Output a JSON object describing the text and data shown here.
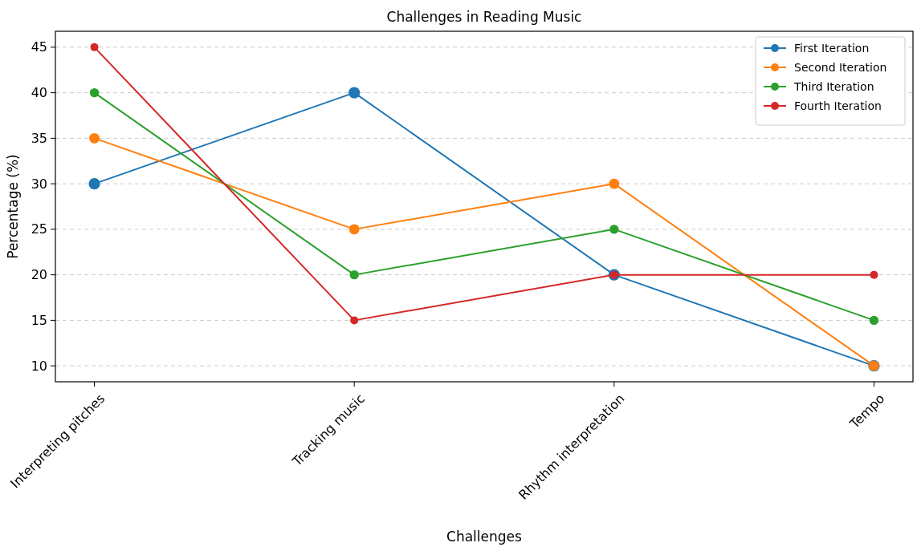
{
  "chart_data": {
    "type": "line",
    "title": "Challenges in Reading Music",
    "xlabel": "Challenges",
    "ylabel": "Percentage (%)",
    "categories": [
      "Interpreting pitches",
      "Tracking music",
      "Rhythm interpretation",
      "Tempo"
    ],
    "series": [
      {
        "name": "First Iteration",
        "color": "#1f77b4",
        "values": [
          30,
          40,
          20,
          10
        ]
      },
      {
        "name": "Second Iteration",
        "color": "#ff7f0e",
        "values": [
          35,
          25,
          30,
          10
        ]
      },
      {
        "name": "Third Iteration",
        "color": "#2ca02c",
        "values": [
          40,
          20,
          25,
          15
        ]
      },
      {
        "name": "Fourth Iteration",
        "color": "#d62728",
        "values": [
          45,
          15,
          20,
          20
        ]
      }
    ],
    "ylim": [
      8.25,
      46.75
    ],
    "yticks": [
      10,
      15,
      20,
      25,
      30,
      35,
      40,
      45
    ],
    "grid": "y",
    "legend": "top right",
    "marker": "circle",
    "line_style": "solid"
  }
}
